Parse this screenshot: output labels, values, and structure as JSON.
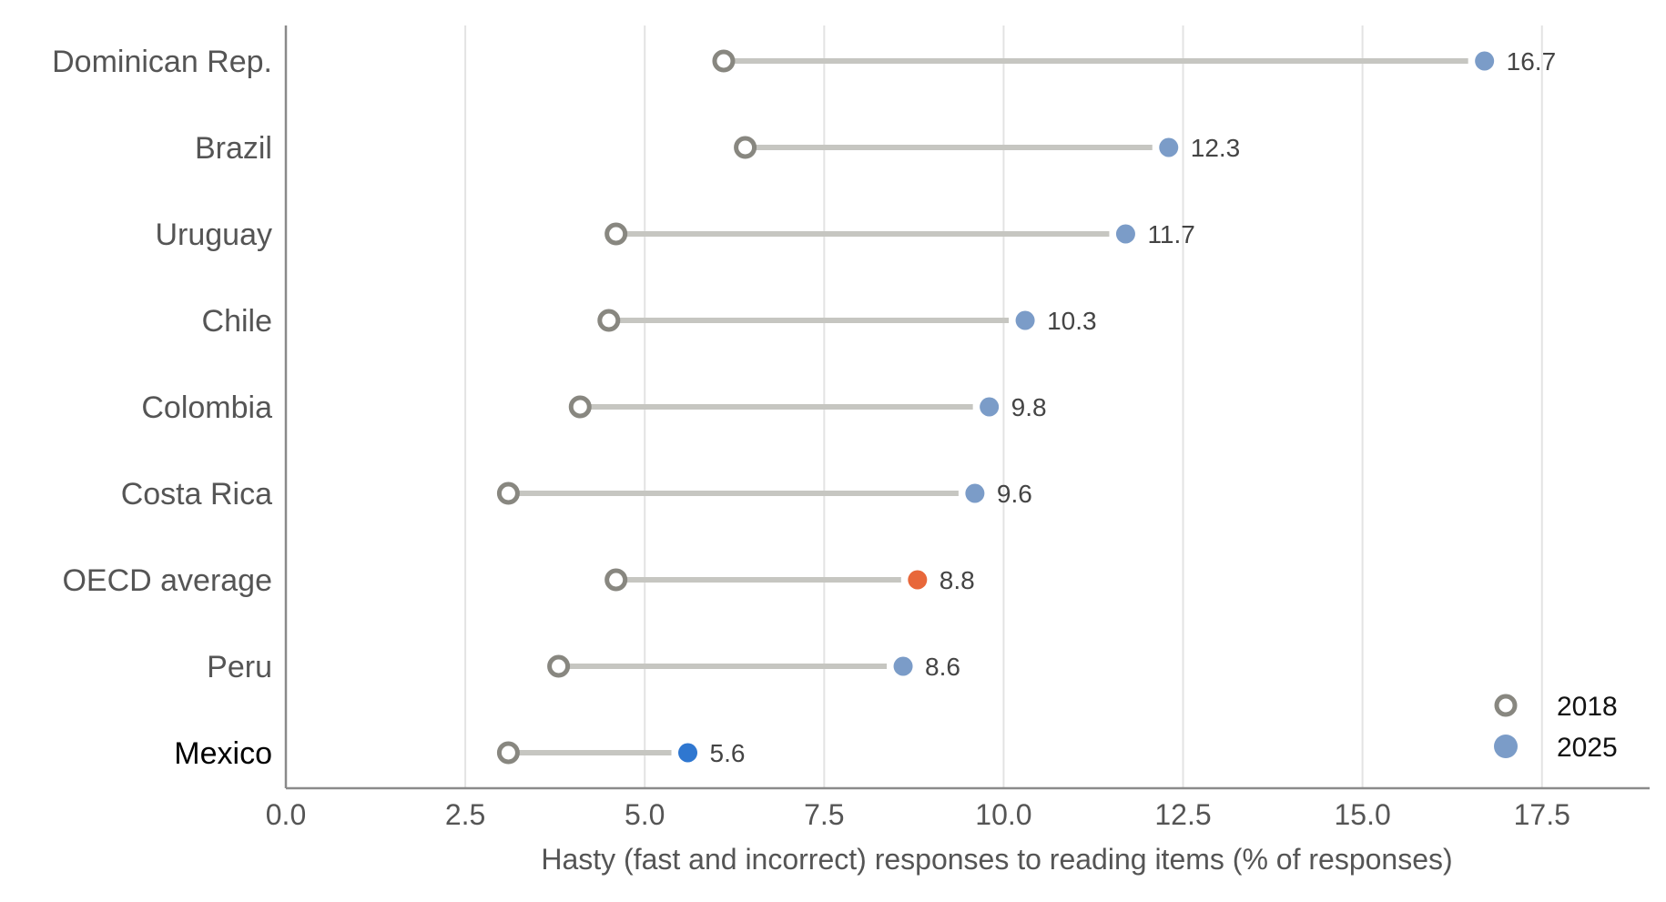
{
  "chart_data": {
    "type": "dumbbell",
    "xlabel": "Hasty (fast and incorrect) responses to reading items (% of responses)",
    "ylabel": "",
    "xlim": [
      0,
      19
    ],
    "xticks": [
      "0.0",
      "2.5",
      "5.0",
      "7.5",
      "10.0",
      "12.5",
      "15.0",
      "17.5"
    ],
    "grid": "vertical",
    "legend_position": "bottom-right",
    "legend": [
      {
        "name": "2018",
        "style": "hollow"
      },
      {
        "name": "2025",
        "style": "filled"
      }
    ],
    "colors": {
      "start_stroke": "#888780",
      "connector": "#c6c6c1",
      "end_default": "#7b9cc8",
      "end_oecd": "#e8673a",
      "end_mexico": "#2f77d0",
      "grid": "#e3e3e3",
      "axis": "#8a8a8a"
    },
    "categories": [
      "Dominican Rep.",
      "Brazil",
      "Uruguay",
      "Chile",
      "Colombia",
      "Costa Rica",
      "OECD average",
      "Peru",
      "Mexico"
    ],
    "start_values": [
      6.1,
      6.4,
      4.6,
      4.5,
      4.1,
      3.1,
      4.6,
      3.8,
      3.1
    ],
    "end_values": [
      16.7,
      12.3,
      11.7,
      10.3,
      9.8,
      9.6,
      8.8,
      8.6,
      5.6
    ],
    "end_labels": [
      "16.7",
      "12.3",
      "11.7",
      "10.3",
      "9.8",
      "9.6",
      "8.8",
      "8.6",
      "5.6"
    ],
    "highlight": {
      "OECD average": "end_oecd",
      "Mexico": "end_mexico"
    }
  }
}
